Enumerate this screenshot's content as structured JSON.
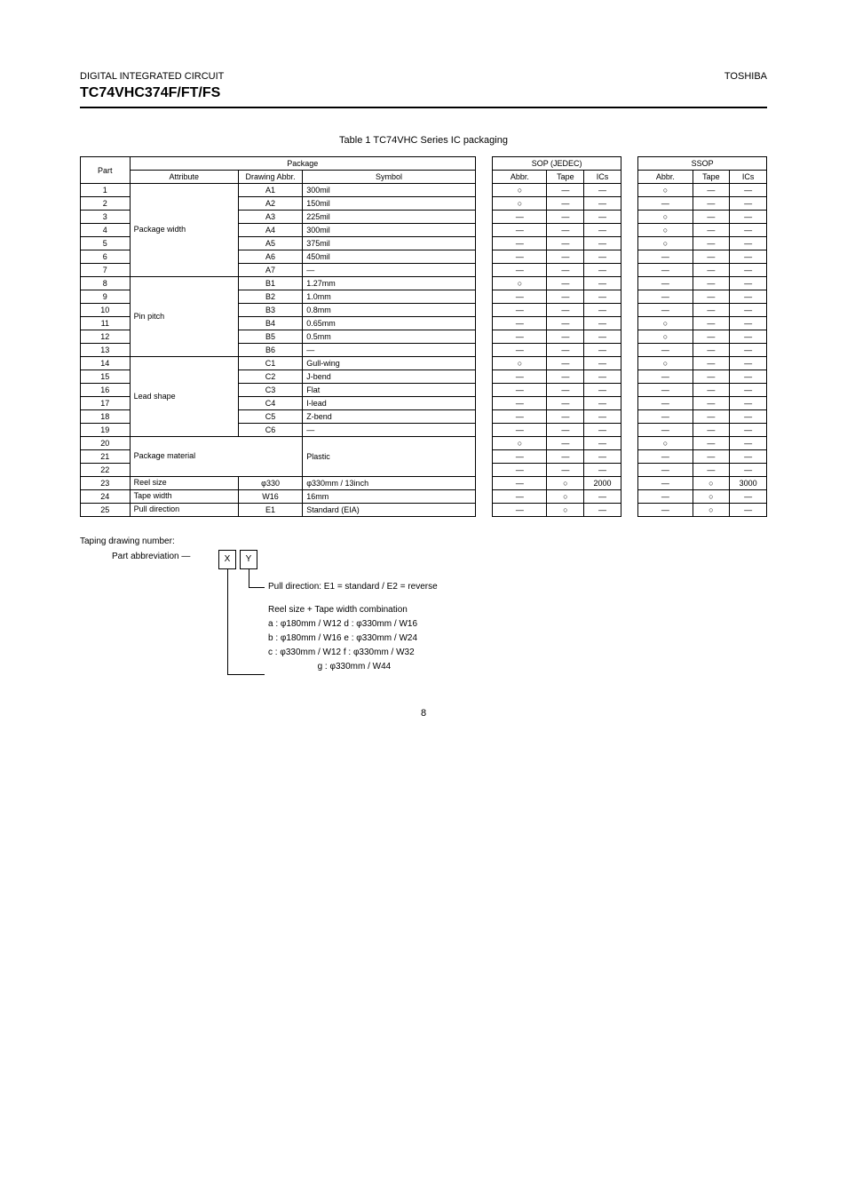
{
  "header": {
    "category_left": "DIGITAL INTEGRATED CIRCUIT",
    "company_right": "TOSHIBA",
    "title": "TC74VHC374F/FT/FS",
    "page_number": "8"
  },
  "table": {
    "caption": "Table 1  TC74VHC Series IC packaging",
    "spanning_headers": {
      "col2_4": "Package",
      "col6_8": "SOP (JEDEC)",
      "col10_12": "SSOP"
    },
    "sub_headers": {
      "part": "Part",
      "attribute": "Attribute",
      "drawing_no": "Drawing Abbr.",
      "symbol": "Symbol",
      "so_abbr": "Abbr.",
      "so_tape": "Tape",
      "so_ics": "ICs",
      "ss_abbr": "Abbr.",
      "ss_tape": "Tape",
      "ss_ics": "ICs"
    },
    "rows": [
      {
        "part": "1",
        "attr": "Package width",
        "attr_rows": 7,
        "dn": "A1",
        "sym": "300mil",
        "so": {
          "a": "○",
          "t": "—",
          "i": "—"
        },
        "ss": {
          "a": "○",
          "t": "—",
          "i": "—"
        }
      },
      {
        "part": "2",
        "dn": "A2",
        "sym": "150mil",
        "so": {
          "a": "○",
          "t": "—",
          "i": "—"
        },
        "ss": {
          "a": "—",
          "t": "—",
          "i": "—"
        }
      },
      {
        "part": "3",
        "dn": "A3",
        "sym": "225mil",
        "so": {
          "a": "—",
          "t": "—",
          "i": "—"
        },
        "ss": {
          "a": "○",
          "t": "—",
          "i": "—"
        }
      },
      {
        "part": "4",
        "dn": "A4",
        "sym": "300mil",
        "so": {
          "a": "—",
          "t": "—",
          "i": "—"
        },
        "ss": {
          "a": "○",
          "t": "—",
          "i": "—"
        }
      },
      {
        "part": "5",
        "dn": "A5",
        "sym": "375mil",
        "so": {
          "a": "—",
          "t": "—",
          "i": "—"
        },
        "ss": {
          "a": "○",
          "t": "—",
          "i": "—"
        }
      },
      {
        "part": "6",
        "dn": "A6",
        "sym": "450mil",
        "so": {
          "a": "—",
          "t": "—",
          "i": "—"
        },
        "ss": {
          "a": "—",
          "t": "—",
          "i": "—"
        }
      },
      {
        "part": "7",
        "dn": "A7",
        "sym": "—",
        "so": {
          "a": "—",
          "t": "—",
          "i": "—"
        },
        "ss": {
          "a": "—",
          "t": "—",
          "i": "—"
        }
      },
      {
        "part": "8",
        "attr": "Pin pitch",
        "attr_rows": 6,
        "dn": "B1",
        "sym": "1.27mm",
        "so": {
          "a": "○",
          "t": "—",
          "i": "—"
        },
        "ss": {
          "a": "—",
          "t": "—",
          "i": "—"
        }
      },
      {
        "part": "9",
        "dn": "B2",
        "sym": "1.0mm",
        "so": {
          "a": "—",
          "t": "—",
          "i": "—"
        },
        "ss": {
          "a": "—",
          "t": "—",
          "i": "—"
        }
      },
      {
        "part": "10",
        "dn": "B3",
        "sym": "0.8mm",
        "so": {
          "a": "—",
          "t": "—",
          "i": "—"
        },
        "ss": {
          "a": "—",
          "t": "—",
          "i": "—"
        }
      },
      {
        "part": "11",
        "dn": "B4",
        "sym": "0.65mm",
        "so": {
          "a": "—",
          "t": "—",
          "i": "—"
        },
        "ss": {
          "a": "○",
          "t": "—",
          "i": "—"
        }
      },
      {
        "part": "12",
        "dn": "B5",
        "sym": "0.5mm",
        "so": {
          "a": "—",
          "t": "—",
          "i": "—"
        },
        "ss": {
          "a": "○",
          "t": "—",
          "i": "—"
        }
      },
      {
        "part": "13",
        "dn": "B6",
        "sym": "—",
        "so": {
          "a": "—",
          "t": "—",
          "i": "—"
        },
        "ss": {
          "a": "—",
          "t": "—",
          "i": "—"
        }
      },
      {
        "part": "14",
        "attr": "Lead shape",
        "attr_rows": 6,
        "dn": "C1",
        "sym": "Gull-wing",
        "so": {
          "a": "○",
          "t": "—",
          "i": "—"
        },
        "ss": {
          "a": "○",
          "t": "—",
          "i": "—"
        }
      },
      {
        "part": "15",
        "dn": "C2",
        "sym": "J-bend",
        "so": {
          "a": "—",
          "t": "—",
          "i": "—"
        },
        "ss": {
          "a": "—",
          "t": "—",
          "i": "—"
        }
      },
      {
        "part": "16",
        "dn": "C3",
        "sym": "Flat",
        "so": {
          "a": "—",
          "t": "—",
          "i": "—"
        },
        "ss": {
          "a": "—",
          "t": "—",
          "i": "—"
        }
      },
      {
        "part": "17",
        "dn": "C4",
        "sym": "I-lead",
        "so": {
          "a": "—",
          "t": "—",
          "i": "—"
        },
        "ss": {
          "a": "—",
          "t": "—",
          "i": "—"
        }
      },
      {
        "part": "18",
        "dn": "C5",
        "sym": "Z-bend",
        "so": {
          "a": "—",
          "t": "—",
          "i": "—"
        },
        "ss": {
          "a": "—",
          "t": "—",
          "i": "—"
        }
      },
      {
        "part": "19",
        "dn": "C6",
        "sym": "—",
        "so": {
          "a": "—",
          "t": "—",
          "i": "—"
        },
        "ss": {
          "a": "—",
          "t": "—",
          "i": "—"
        }
      },
      {
        "part": "20",
        "attr": "Package material",
        "attr_group": "wide",
        "attr_rows": 3,
        "dn": "",
        "sym": "Plastic",
        "so": {
          "a": "○",
          "t": "—",
          "i": "—"
        },
        "ss": {
          "a": "○",
          "t": "—",
          "i": "—"
        }
      },
      {
        "part": "21",
        "sym": "",
        "so": {
          "a": "—",
          "t": "—",
          "i": "—"
        },
        "ss": {
          "a": "—",
          "t": "—",
          "i": "—"
        }
      },
      {
        "part": "22",
        "sym": "",
        "so": {
          "a": "—",
          "t": "—",
          "i": "—"
        },
        "ss": {
          "a": "—",
          "t": "—",
          "i": "—"
        }
      },
      {
        "part": "23",
        "attr": "Reel size",
        "dn": "φ330",
        "sym": "φ330mm / 13inch",
        "so": {
          "a": "—",
          "t": "○",
          "i": "2000"
        },
        "ss": {
          "a": "—",
          "t": "○",
          "i": "3000"
        }
      },
      {
        "part": "24",
        "attr": "Tape width",
        "dn": "W16",
        "sym": "16mm",
        "so": {
          "a": "—",
          "t": "○",
          "i": "—"
        },
        "ss": {
          "a": "—",
          "t": "○",
          "i": "—"
        }
      },
      {
        "part": "25",
        "attr": "Pull direction",
        "dn": "E1",
        "sym": "Standard (EIA)",
        "so": {
          "a": "—",
          "t": "○",
          "i": "—"
        },
        "ss": {
          "a": "—",
          "t": "○",
          "i": "—"
        }
      }
    ]
  },
  "ordering": {
    "title": "Taping drawing number:",
    "prefix": "Part abbreviation — ",
    "box1": "X",
    "box2": "Y",
    "line_y": "Pull direction: E1 = standard / E2 = reverse",
    "line_x_1": "Reel size + Tape width combination",
    "line_x_2": "a : φ180mm / W12    d : φ330mm / W16",
    "line_x_3": "b : φ180mm / W16    e : φ330mm / W24",
    "line_x_4": "c : φ330mm / W12    f : φ330mm / W32",
    "line_x_5": "                    g : φ330mm / W44"
  }
}
